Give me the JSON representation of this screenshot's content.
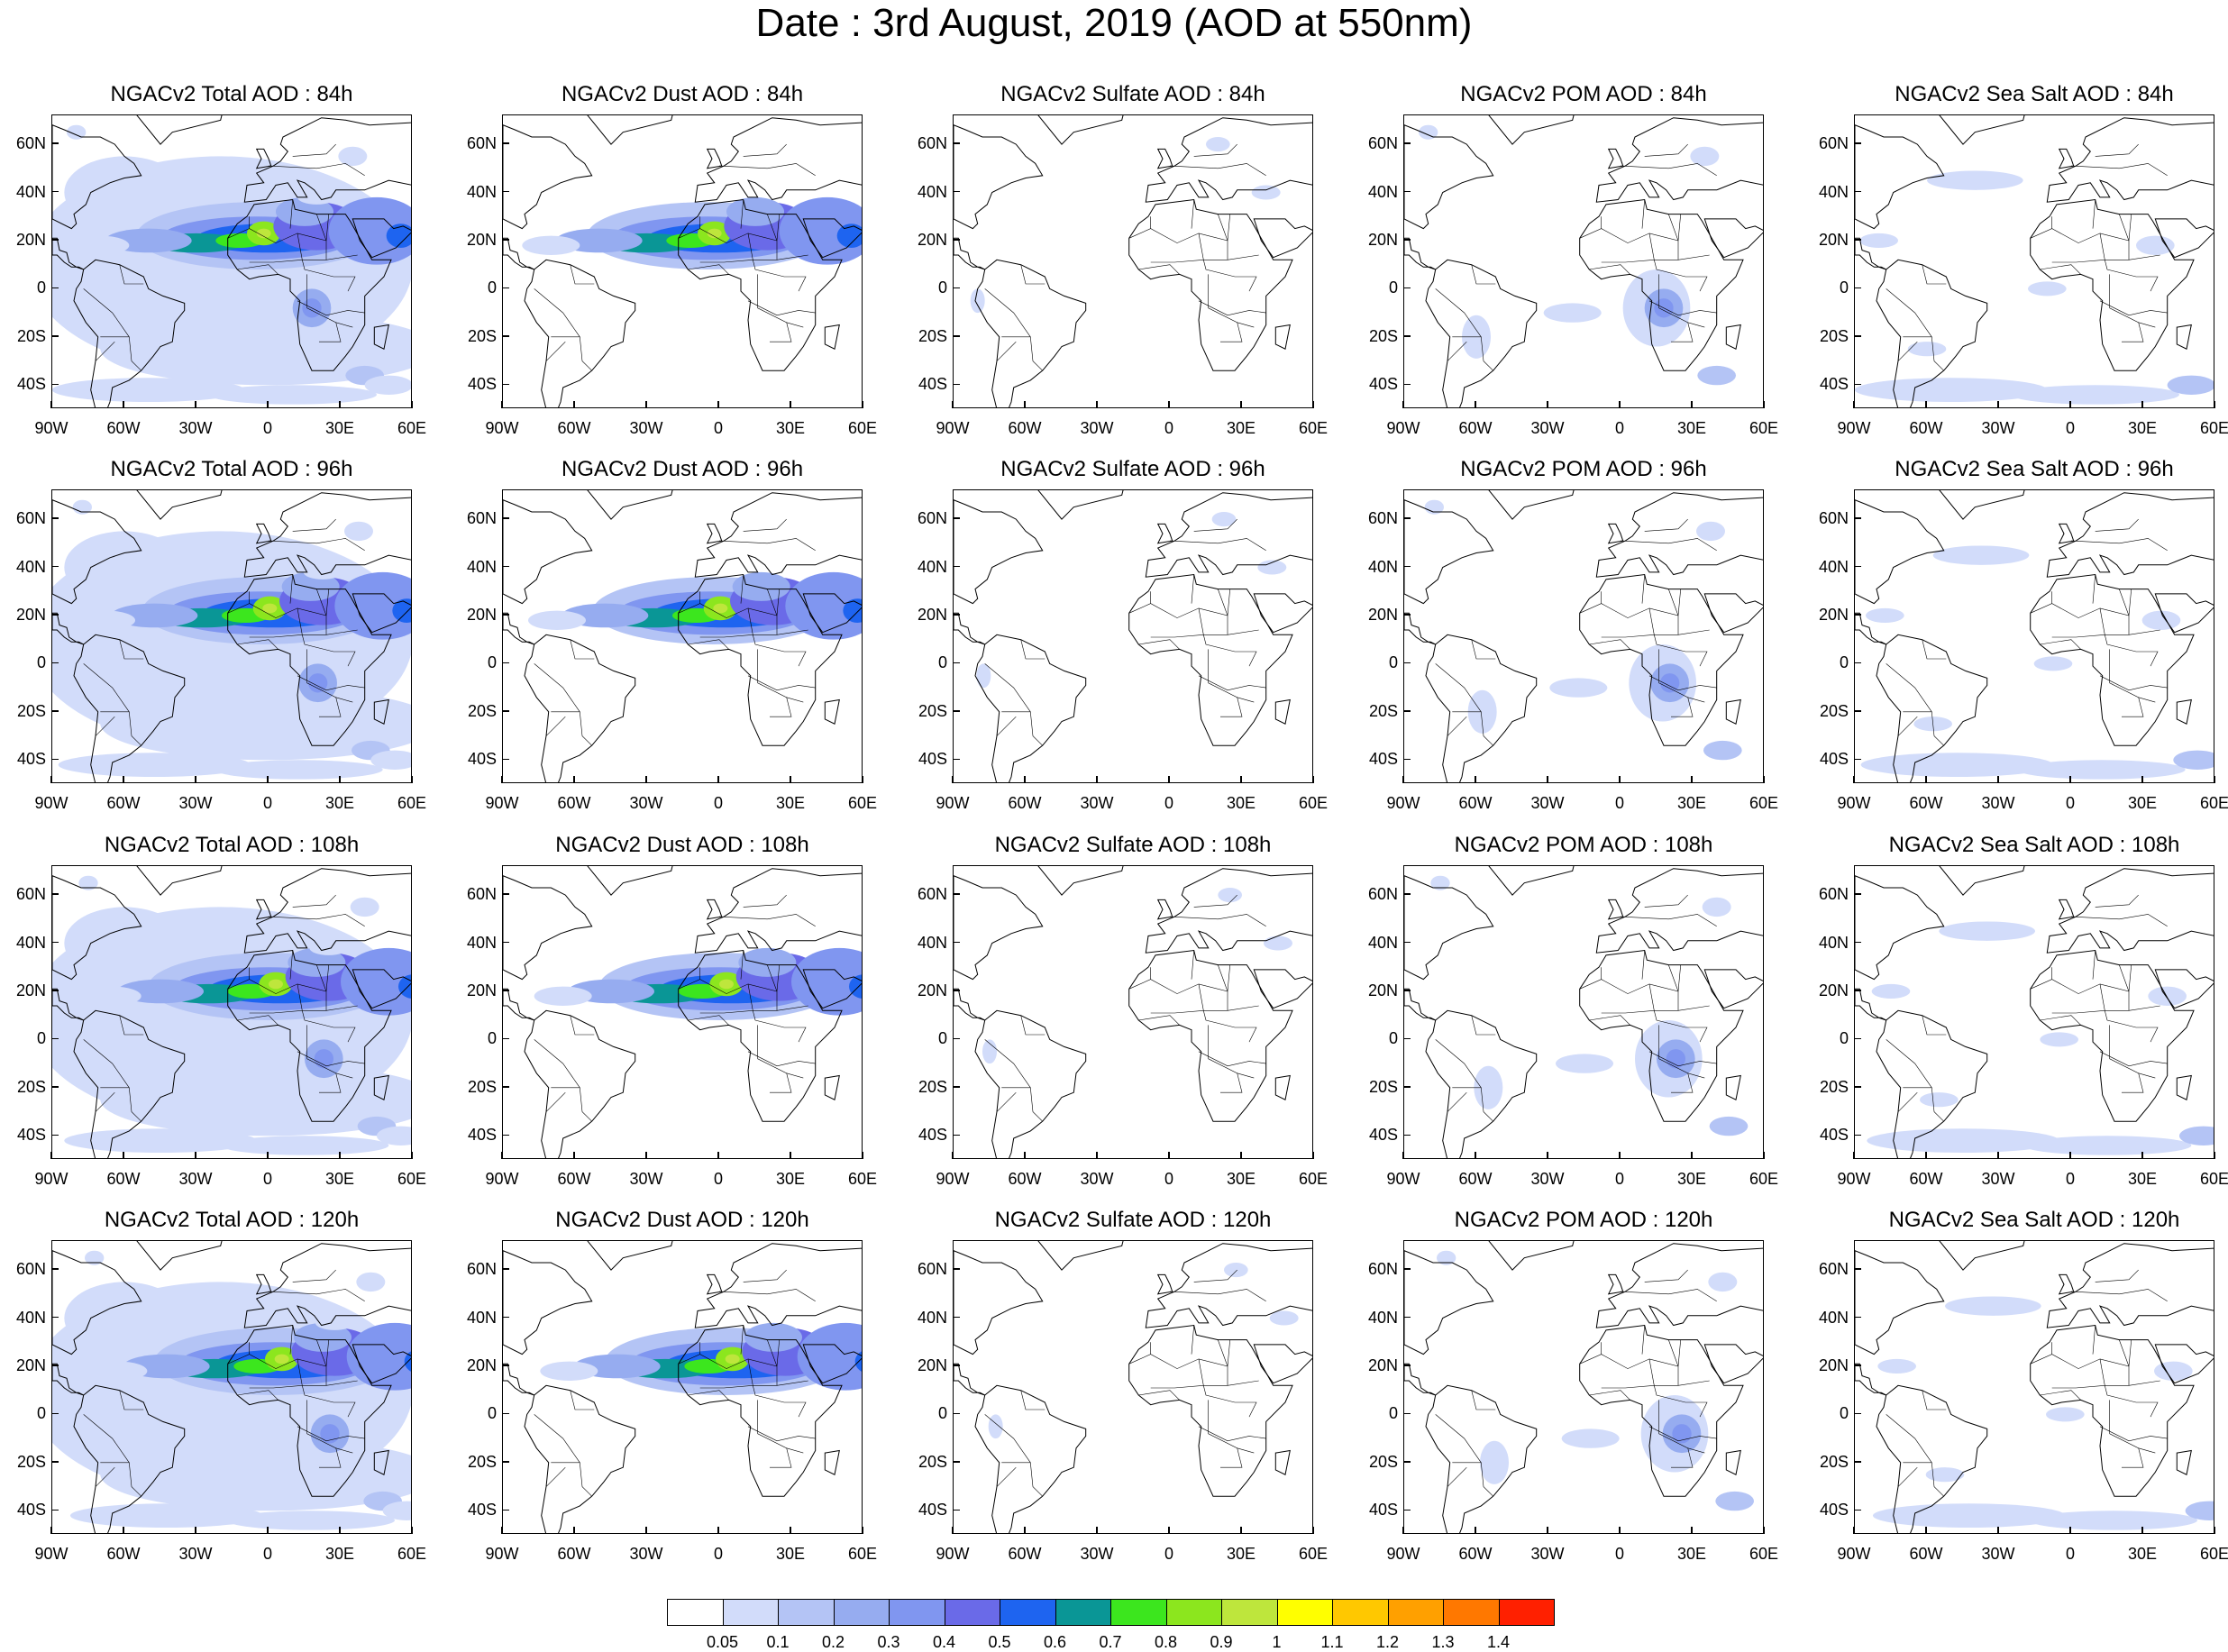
{
  "title": "Date : 3rd August, 2019 (AOD at 550nm)",
  "map_data": {
    "type": "multi-panel-map",
    "projection": "cylindrical-equidistant",
    "variable": "AOD at 550nm",
    "date": "3rd August, 2019",
    "lon_range": [
      -90,
      60
    ],
    "lat_range": [
      -50,
      72
    ],
    "lon_ticks": [
      "90W",
      "60W",
      "30W",
      "0",
      "30E",
      "60E"
    ],
    "lon_tick_values": [
      -90,
      -60,
      -30,
      0,
      30,
      60
    ],
    "lat_ticks": [
      "60N",
      "40N",
      "20N",
      "0",
      "20S",
      "40S"
    ],
    "lat_tick_values": [
      60,
      40,
      20,
      0,
      -20,
      -40
    ],
    "rows": [
      {
        "forecast_hour": "84h",
        "panels": [
          {
            "species": "total",
            "title": "NGACv2 Total AOD : 84h"
          },
          {
            "species": "dust",
            "title": "NGACv2 Dust AOD : 84h"
          },
          {
            "species": "sulfate",
            "title": "NGACv2 Sulfate AOD : 84h"
          },
          {
            "species": "pom",
            "title": "NGACv2 POM AOD : 84h"
          },
          {
            "species": "seasalt",
            "title": "NGACv2 Sea Salt AOD : 84h"
          }
        ]
      },
      {
        "forecast_hour": "96h",
        "panels": [
          {
            "species": "total",
            "title": "NGACv2 Total AOD : 96h"
          },
          {
            "species": "dust",
            "title": "NGACv2 Dust AOD : 96h"
          },
          {
            "species": "sulfate",
            "title": "NGACv2 Sulfate AOD : 96h"
          },
          {
            "species": "pom",
            "title": "NGACv2 POM AOD : 96h"
          },
          {
            "species": "seasalt",
            "title": "NGACv2 Sea Salt AOD : 96h"
          }
        ]
      },
      {
        "forecast_hour": "108h",
        "panels": [
          {
            "species": "total",
            "title": "NGACv2 Total AOD : 108h"
          },
          {
            "species": "dust",
            "title": "NGACv2 Dust AOD : 108h"
          },
          {
            "species": "sulfate",
            "title": "NGACv2 Sulfate AOD : 108h"
          },
          {
            "species": "pom",
            "title": "NGACv2 POM AOD : 108h"
          },
          {
            "species": "seasalt",
            "title": "NGACv2 Sea Salt AOD : 108h"
          }
        ]
      },
      {
        "forecast_hour": "120h",
        "panels": [
          {
            "species": "total",
            "title": "NGACv2 Total AOD : 120h"
          },
          {
            "species": "dust",
            "title": "NGACv2 Dust AOD : 120h"
          },
          {
            "species": "sulfate",
            "title": "NGACv2 Sulfate AOD : 120h"
          },
          {
            "species": "pom",
            "title": "NGACv2 POM AOD : 120h"
          },
          {
            "species": "seasalt",
            "title": "NGACv2 Sea Salt  AOD : 120h"
          }
        ]
      }
    ],
    "colorbar": {
      "labels": [
        "0.05",
        "0.1",
        "0.2",
        "0.3",
        "0.4",
        "0.5",
        "0.6",
        "0.7",
        "0.8",
        "0.9",
        "1",
        "1.1",
        "1.2",
        "1.3",
        "1.4"
      ],
      "colors": [
        "#ffffff",
        "#d2dcfa",
        "#b4c4f5",
        "#96acf0",
        "#8096f0",
        "#6a6ae8",
        "#1e64f0",
        "#0a9696",
        "#3ce61e",
        "#8ce61e",
        "#bee63c",
        "#ffff00",
        "#ffc800",
        "#ffa000",
        "#ff7800",
        "#ff2000"
      ]
    }
  }
}
